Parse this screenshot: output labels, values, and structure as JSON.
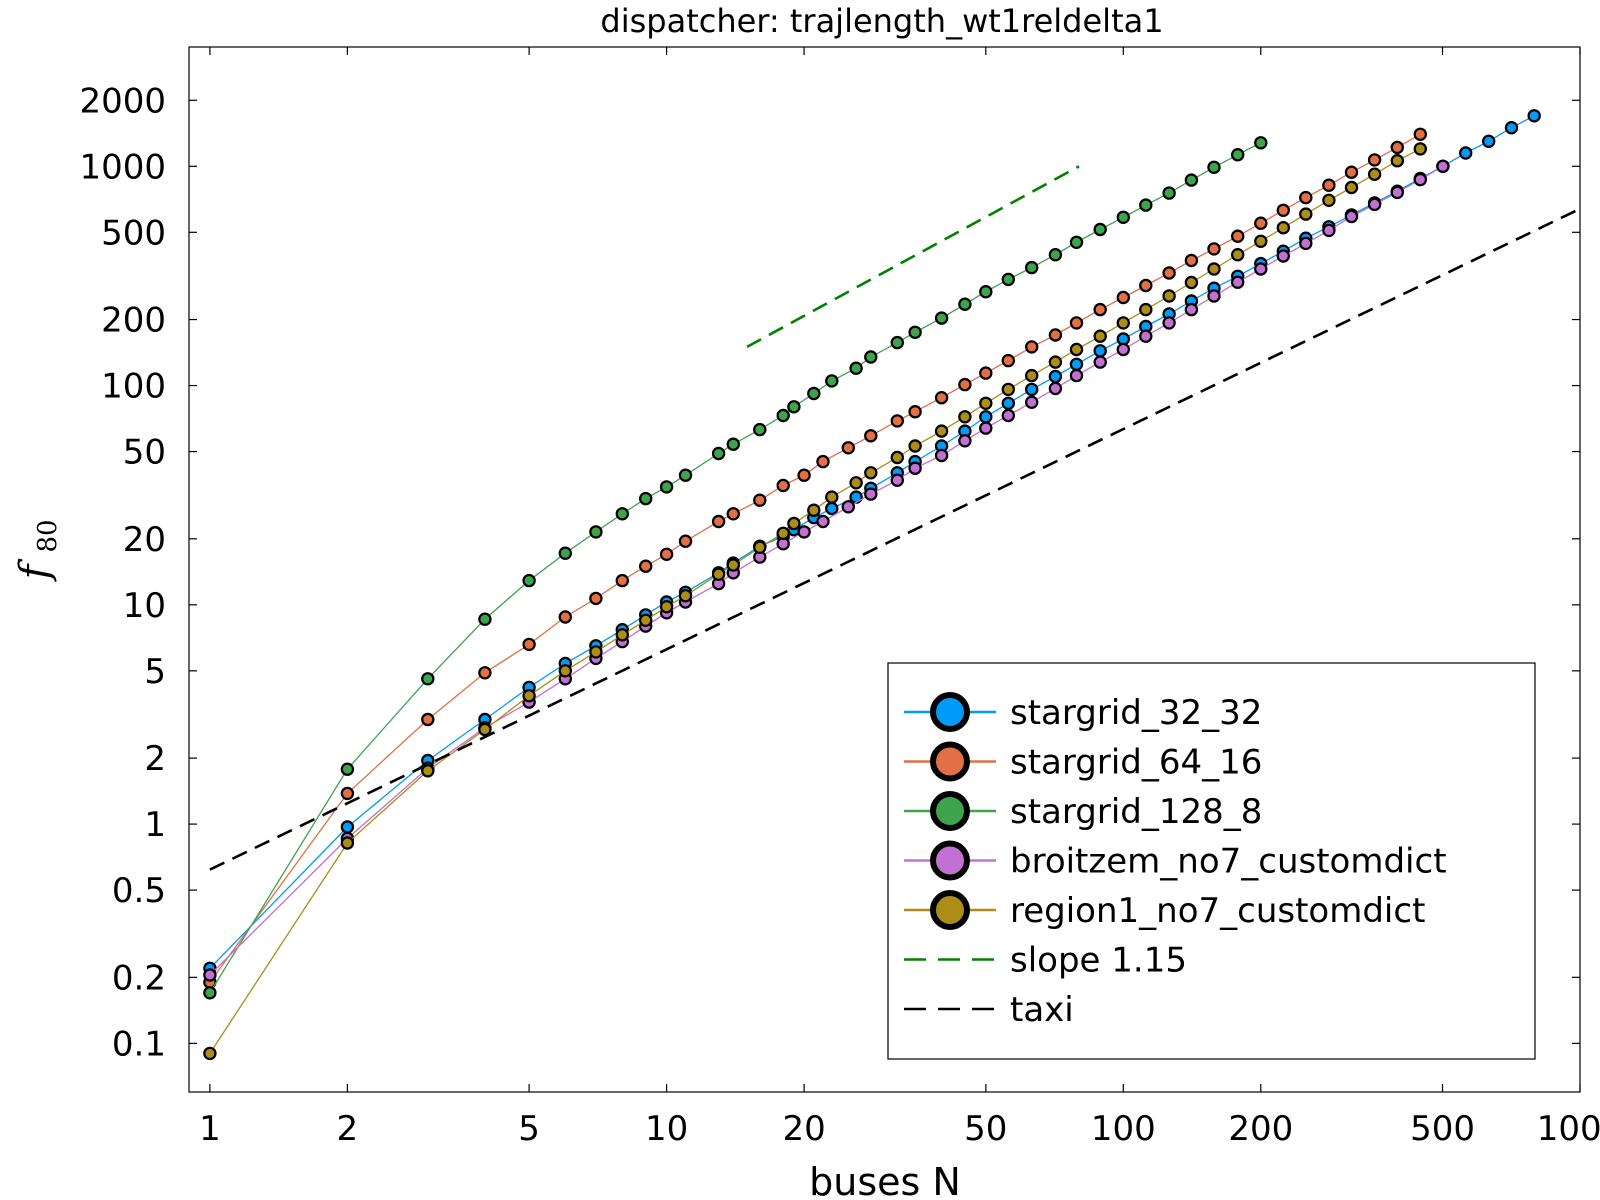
{
  "chart_data": {
    "type": "line",
    "title": "dispatcher: trajlength_wt1reldelta1",
    "xlabel": "buses N",
    "ylabel_main": "f",
    "ylabel_sub": "80",
    "xscale": "log",
    "yscale": "log",
    "xlim": [
      0.9,
      1000
    ],
    "ylim": [
      0.06,
      3500
    ],
    "grid": false,
    "legend_position": "bottom-right",
    "xticks": [
      {
        "value": 1,
        "label": "1"
      },
      {
        "value": 2,
        "label": "2"
      },
      {
        "value": 5,
        "label": "5"
      },
      {
        "value": 10,
        "label": "10"
      },
      {
        "value": 20,
        "label": "20"
      },
      {
        "value": 50,
        "label": "50"
      },
      {
        "value": 100,
        "label": "100"
      },
      {
        "value": 200,
        "label": "200"
      },
      {
        "value": 500,
        "label": "500"
      },
      {
        "value": 1000,
        "label": "1000"
      }
    ],
    "yticks": [
      {
        "value": 0.1,
        "label": "0.1"
      },
      {
        "value": 0.2,
        "label": "0.2"
      },
      {
        "value": 0.5,
        "label": "0.5"
      },
      {
        "value": 1,
        "label": "1"
      },
      {
        "value": 2,
        "label": "2"
      },
      {
        "value": 5,
        "label": "5"
      },
      {
        "value": 10,
        "label": "10"
      },
      {
        "value": 20,
        "label": "20"
      },
      {
        "value": 50,
        "label": "50"
      },
      {
        "value": 100,
        "label": "100"
      },
      {
        "value": 200,
        "label": "200"
      },
      {
        "value": 500,
        "label": "500"
      },
      {
        "value": 1000,
        "label": "1000"
      },
      {
        "value": 2000,
        "label": "2000"
      }
    ],
    "series": [
      {
        "name": "stargrid_32_32",
        "color": "#009AF9",
        "style": "line-markers",
        "x": [
          1,
          2,
          3,
          4,
          5,
          6,
          7,
          8,
          9,
          10,
          11,
          13,
          14,
          16,
          18,
          19,
          21,
          23,
          26,
          28,
          32,
          35,
          40,
          45,
          50,
          56,
          63,
          71,
          79,
          89,
          100,
          112,
          126,
          141,
          158,
          178,
          200,
          224,
          251,
          282,
          316,
          355,
          398,
          447,
          501,
          562,
          631,
          708,
          794
        ],
        "y": [
          0.22,
          0.97,
          1.95,
          3.0,
          4.2,
          5.4,
          6.5,
          7.7,
          9.0,
          10.3,
          11.4,
          14.0,
          15.5,
          18.5,
          20.5,
          22,
          25,
          27.5,
          31,
          34,
          40,
          45,
          53,
          62,
          72,
          83,
          96,
          110,
          125,
          144,
          163,
          186,
          212,
          243,
          278,
          315,
          360,
          410,
          470,
          530,
          600,
          680,
          770,
          880,
          1000,
          1150,
          1300,
          1500,
          1700
        ]
      },
      {
        "name": "stargrid_64_16",
        "color": "#E26F46",
        "style": "line-markers",
        "x": [
          1,
          2,
          3,
          4,
          5,
          6,
          7,
          8,
          9,
          10,
          11,
          13,
          14,
          16,
          18,
          20,
          22,
          25,
          28,
          32,
          35,
          40,
          45,
          50,
          56,
          63,
          71,
          79,
          89,
          100,
          112,
          126,
          141,
          158,
          178,
          200,
          224,
          251,
          282,
          316,
          355,
          398,
          447
        ],
        "y": [
          0.19,
          1.38,
          3.0,
          4.9,
          6.6,
          8.8,
          10.7,
          12.9,
          15.0,
          17.0,
          19.5,
          24,
          26,
          30,
          35,
          39,
          45,
          52,
          59,
          69,
          76,
          88,
          101,
          114,
          130,
          150,
          170,
          193,
          222,
          252,
          286,
          326,
          372,
          420,
          480,
          550,
          630,
          720,
          820,
          940,
          1070,
          1220,
          1400
        ]
      },
      {
        "name": "stargrid_128_8",
        "color": "#3DA44D",
        "style": "line-markers",
        "x": [
          1,
          2,
          3,
          4,
          5,
          6,
          7,
          8,
          9,
          10,
          11,
          13,
          14,
          16,
          18,
          19,
          21,
          23,
          26,
          28,
          32,
          35,
          40,
          45,
          50,
          56,
          63,
          71,
          79,
          89,
          100,
          112,
          126,
          141,
          158,
          178,
          200
        ],
        "y": [
          0.17,
          1.78,
          4.6,
          8.6,
          12.9,
          17.2,
          21.5,
          26.0,
          30.5,
          34.5,
          39,
          49,
          54,
          63,
          73,
          80,
          92,
          105,
          120,
          135,
          157,
          175,
          203,
          235,
          268,
          305,
          345,
          395,
          450,
          515,
          585,
          665,
          755,
          865,
          990,
          1130,
          1280
        ]
      },
      {
        "name": "broitzem_no7_customdict",
        "color": "#C271D2",
        "style": "line-markers",
        "x": [
          1,
          2,
          3,
          4,
          5,
          6,
          7,
          8,
          9,
          10,
          11,
          13,
          14,
          16,
          18,
          20,
          22,
          25,
          28,
          32,
          35,
          40,
          45,
          50,
          56,
          63,
          71,
          79,
          89,
          100,
          112,
          126,
          141,
          158,
          178,
          200,
          224,
          251,
          282,
          316,
          355,
          398,
          447,
          501
        ],
        "y": [
          0.205,
          0.86,
          1.8,
          2.75,
          3.6,
          4.6,
          5.7,
          6.8,
          8.0,
          9.2,
          10.3,
          12.5,
          14,
          16.5,
          19,
          21.5,
          24,
          28,
          32,
          37,
          42,
          48,
          56,
          64,
          73,
          84,
          97,
          111,
          128,
          146,
          168,
          193,
          222,
          256,
          296,
          340,
          390,
          445,
          510,
          590,
          670,
          760,
          870,
          1000
        ]
      },
      {
        "name": "region1_no7_customdict",
        "color": "#AC8D18",
        "style": "line-markers",
        "x": [
          1,
          2,
          3,
          4,
          5,
          6,
          7,
          8,
          9,
          10,
          11,
          13,
          14,
          16,
          18,
          19,
          21,
          23,
          26,
          28,
          32,
          35,
          40,
          45,
          50,
          56,
          63,
          71,
          79,
          89,
          100,
          112,
          126,
          141,
          158,
          178,
          200,
          224,
          251,
          282,
          316,
          355,
          398,
          447
        ],
        "y": [
          0.09,
          0.82,
          1.75,
          2.7,
          3.85,
          5.0,
          6.1,
          7.3,
          8.5,
          9.8,
          11.0,
          13.8,
          15.2,
          18.3,
          21.2,
          23.5,
          27,
          31,
          36,
          40,
          47,
          53,
          62,
          72,
          83,
          96,
          111,
          128,
          146,
          168,
          193,
          222,
          256,
          295,
          340,
          395,
          455,
          525,
          605,
          700,
          800,
          920,
          1060,
          1200
        ]
      },
      {
        "name": "slope 1.15",
        "color": "#008000",
        "style": "dashed",
        "x": [
          15,
          80
        ],
        "y": [
          150,
          1000
        ]
      },
      {
        "name": "taxi",
        "color": "#000000",
        "style": "dashed",
        "x": [
          1,
          1000
        ],
        "y": [
          0.62,
          640
        ]
      }
    ]
  }
}
